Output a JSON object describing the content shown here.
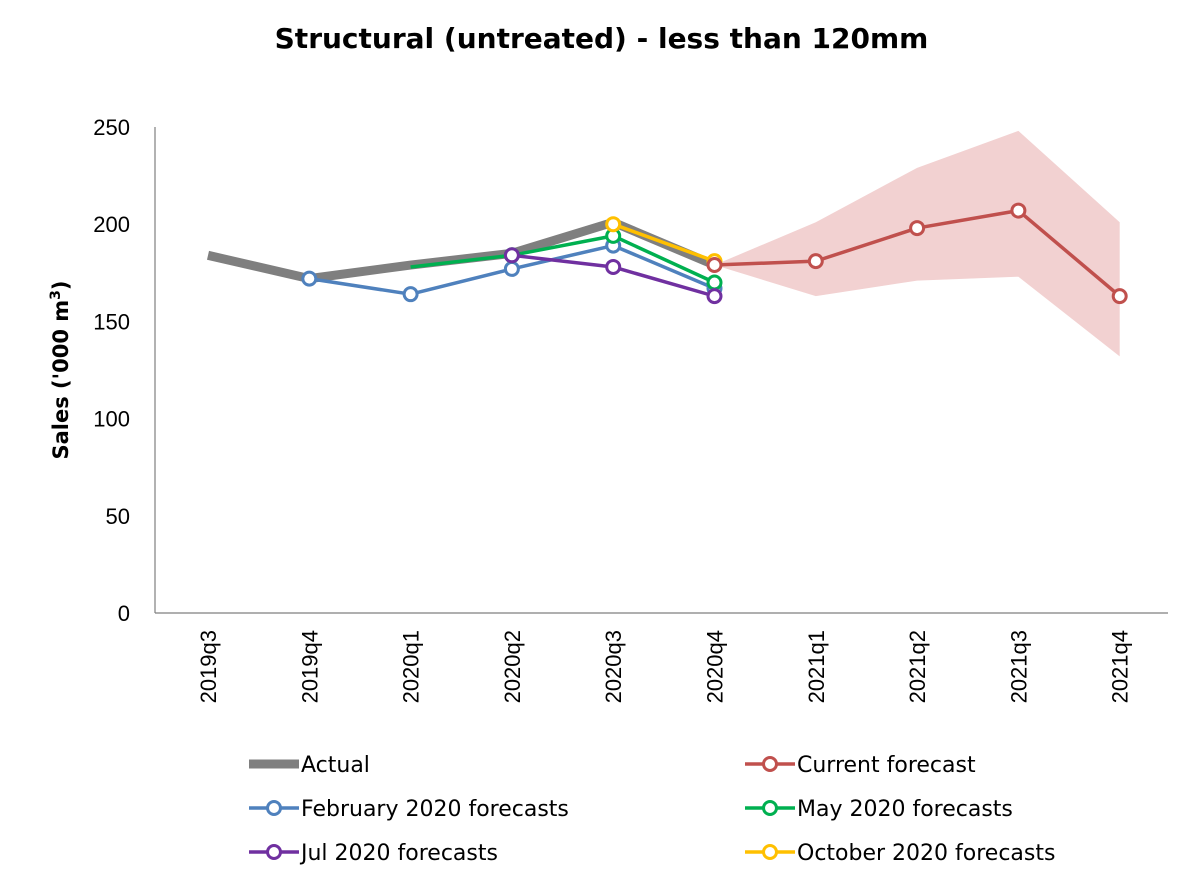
{
  "chart_data": {
    "type": "line",
    "title": "Structural (untreated) - less than 120mm",
    "ylabel_main": "Sales ('000 m",
    "ylabel_sup": "3",
    "ylabel_close": ")",
    "xlabel": "",
    "ylim": [
      0,
      250
    ],
    "yticks": [
      0,
      50,
      100,
      150,
      200,
      250
    ],
    "categories": [
      "2019q3",
      "2019q4",
      "2020q1",
      "2020q2",
      "2020q3",
      "2020q4",
      "2021q1",
      "2021q2",
      "2021q3",
      "2021q4"
    ],
    "grid": false,
    "legend_position": "bottom",
    "band": {
      "series": "Current forecast",
      "color": "#f2d1d1",
      "points": [
        {
          "x": "2020q4",
          "lower": 179,
          "upper": 179
        },
        {
          "x": "2021q1",
          "lower": 163,
          "upper": 201
        },
        {
          "x": "2021q2",
          "lower": 171,
          "upper": 229
        },
        {
          "x": "2021q3",
          "lower": 173,
          "upper": 248
        },
        {
          "x": "2021q4",
          "lower": 132,
          "upper": 201
        }
      ]
    },
    "series": [
      {
        "name": "Actual",
        "color": "#7f7f7f",
        "style": "thick",
        "points": [
          [
            "2019q3",
            184
          ],
          [
            "2019q4",
            172
          ],
          [
            "2020q1",
            179
          ],
          [
            "2020q2",
            185
          ],
          [
            "2020q3",
            201
          ],
          [
            "2020q4",
            179
          ]
        ]
      },
      {
        "name": "Current forecast",
        "color": "#c0504d",
        "style": "marker",
        "points": [
          [
            "2020q4",
            179
          ],
          [
            "2021q1",
            181
          ],
          [
            "2021q2",
            198
          ],
          [
            "2021q3",
            207
          ],
          [
            "2021q4",
            163
          ]
        ]
      },
      {
        "name": "February 2020 forecasts",
        "color": "#4f81bd",
        "style": "marker",
        "points": [
          [
            "2019q4",
            172
          ],
          [
            "2020q1",
            164
          ],
          [
            "2020q2",
            177
          ],
          [
            "2020q3",
            189
          ],
          [
            "2020q4",
            167
          ]
        ]
      },
      {
        "name": "May 2020 forecasts",
        "color": "#00b050",
        "style": "marker",
        "points": [
          [
            "2020q1",
            178
          ],
          [
            "2020q2",
            184
          ],
          [
            "2020q3",
            194
          ],
          [
            "2020q4",
            170
          ]
        ]
      },
      {
        "name": "Jul 2020 forecasts",
        "color": "#7030a0",
        "style": "marker",
        "points": [
          [
            "2020q2",
            184
          ],
          [
            "2020q3",
            178
          ],
          [
            "2020q4",
            163
          ]
        ]
      },
      {
        "name": "October 2020 forecasts",
        "color": "#ffc000",
        "style": "marker",
        "points": [
          [
            "2020q3",
            200
          ],
          [
            "2020q4",
            181
          ]
        ]
      }
    ]
  }
}
